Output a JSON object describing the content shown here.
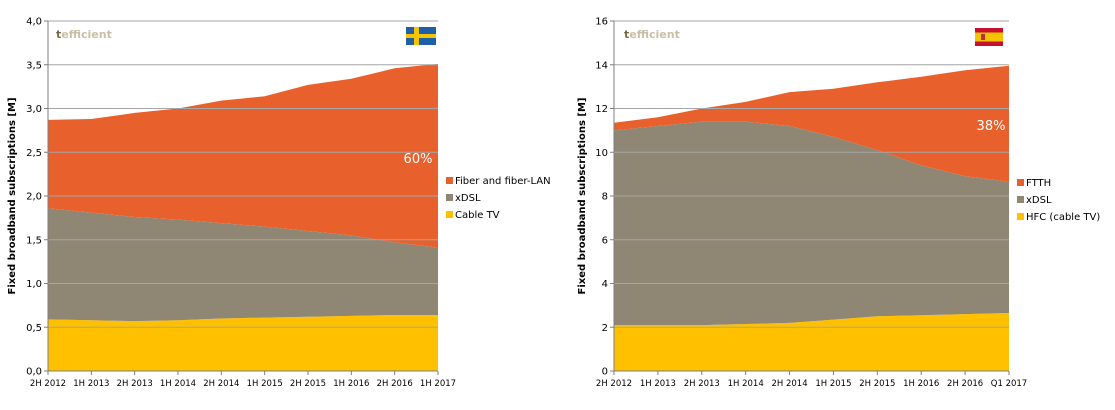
{
  "colors": {
    "fiber": "#e8602c",
    "xdsl": "#908674",
    "cable": "#ffc000",
    "grid": "#a6a6a6",
    "axis": "#7f7f7f",
    "logo_t": "#7a6a45",
    "logo_rest": "#c8bfa5"
  },
  "logo": {
    "t": "t",
    "rest": "efficient"
  },
  "chart_data": [
    {
      "type": "area",
      "flag": "sweden-flag",
      "ylabel": "Fixed broadband subscriptions [M]",
      "ylim": [
        0,
        4
      ],
      "yticks": [
        "0,0",
        "0,5",
        "1,0",
        "1,5",
        "2,0",
        "2,5",
        "3,0",
        "3,5",
        "4,0"
      ],
      "categories": [
        "2H 2012",
        "1H 2013",
        "2H 2013",
        "1H 2014",
        "2H 2014",
        "1H 2015",
        "2H 2015",
        "1H 2016",
        "2H 2016",
        "1H 2017"
      ],
      "stack_order": [
        "Cable TV",
        "xDSL",
        "Fiber and fiber-LAN"
      ],
      "series": [
        {
          "name": "Cable TV",
          "color": "#ffc000",
          "values": [
            0.59,
            0.58,
            0.57,
            0.58,
            0.6,
            0.61,
            0.62,
            0.63,
            0.64,
            0.64
          ]
        },
        {
          "name": "xDSL",
          "color": "#908674",
          "values": [
            1.27,
            1.23,
            1.19,
            1.15,
            1.09,
            1.04,
            0.98,
            0.92,
            0.83,
            0.77
          ]
        },
        {
          "name": "Fiber and fiber-LAN",
          "color": "#e8602c",
          "values": [
            1.01,
            1.07,
            1.19,
            1.27,
            1.4,
            1.49,
            1.67,
            1.79,
            1.99,
            2.1
          ]
        }
      ],
      "legend": [
        "Fiber and fiber-LAN",
        "xDSL",
        "Cable TV"
      ],
      "legend_position": "right",
      "annotation": "60%",
      "grid": true
    },
    {
      "type": "area",
      "flag": "spain-flag",
      "ylabel": "Fixed broadband subscriptions [M]",
      "ylim": [
        0,
        16
      ],
      "yticks": [
        "0",
        "2",
        "4",
        "6",
        "8",
        "10",
        "12",
        "14",
        "16"
      ],
      "categories": [
        "2H 2012",
        "1H 2013",
        "2H 2013",
        "1H 2014",
        "2H 2014",
        "1H 2015",
        "2H 2015",
        "1H 2016",
        "2H 2016",
        "Q1 2017"
      ],
      "stack_order": [
        "HFC (cable TV)",
        "xDSL",
        "FTTH"
      ],
      "series": [
        {
          "name": "HFC (cable TV)",
          "color": "#ffc000",
          "values": [
            2.1,
            2.1,
            2.1,
            2.15,
            2.2,
            2.35,
            2.5,
            2.55,
            2.6,
            2.65
          ]
        },
        {
          "name": "xDSL",
          "color": "#908674",
          "values": [
            8.9,
            9.1,
            9.3,
            9.25,
            9.0,
            8.35,
            7.6,
            6.85,
            6.3,
            6.0
          ]
        },
        {
          "name": "FTTH",
          "color": "#e8602c",
          "values": [
            0.35,
            0.4,
            0.6,
            0.9,
            1.55,
            2.2,
            3.1,
            4.05,
            4.85,
            5.3
          ]
        }
      ],
      "legend": [
        "FTTH",
        "xDSL",
        "HFC (cable TV)"
      ],
      "legend_position": "right",
      "annotation": "38%",
      "grid": true
    }
  ]
}
